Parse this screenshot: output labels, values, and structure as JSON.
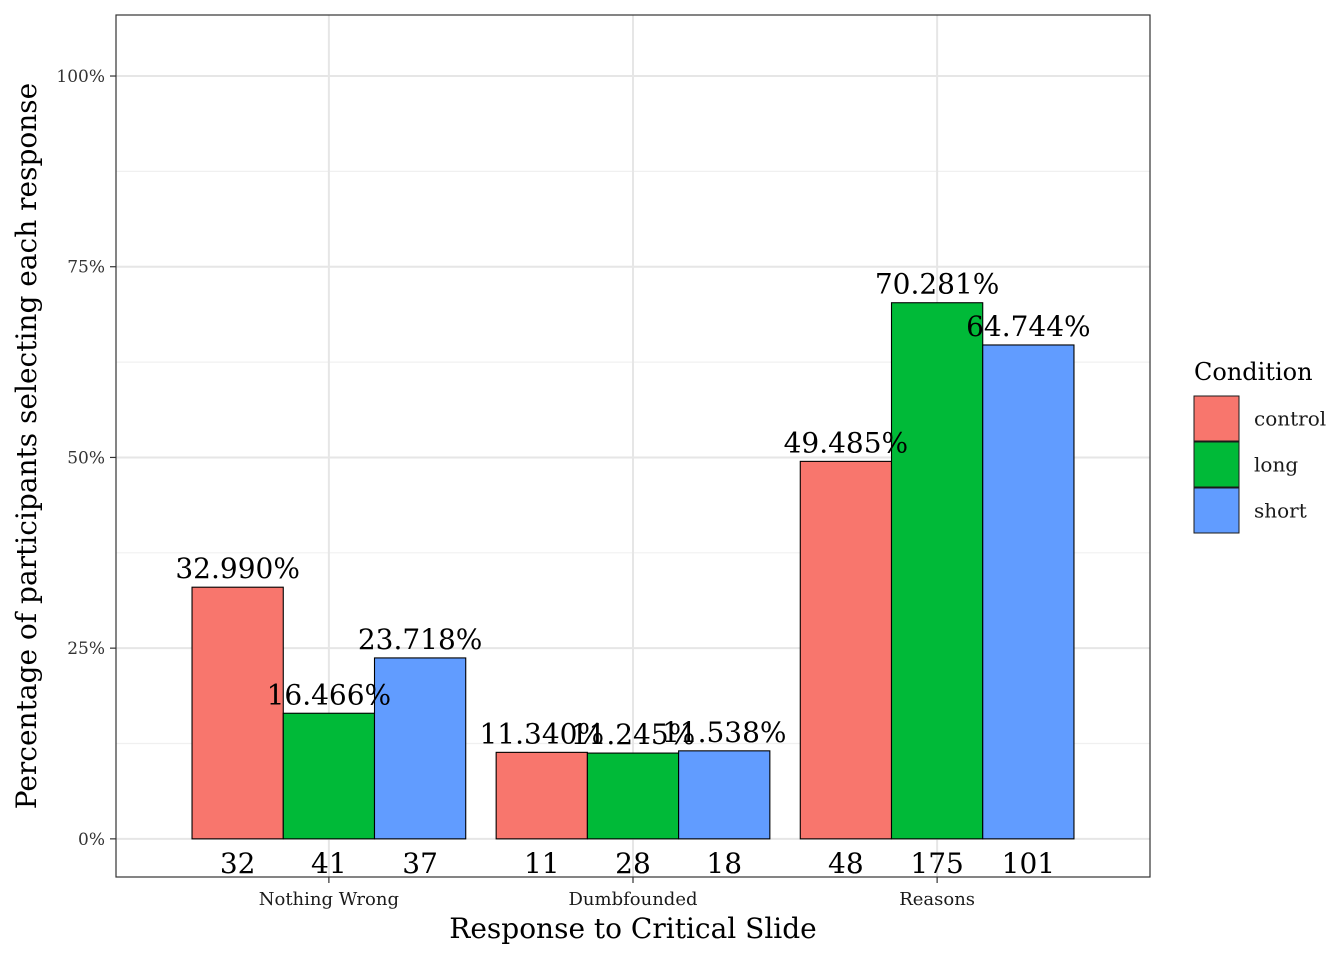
{
  "chart_data": {
    "type": "bar",
    "xlabel": "Response to Critical Slide",
    "ylabel": "Percentage of participants selecting each response",
    "categories": [
      "Nothing Wrong",
      "Dumbfounded",
      "Reasons"
    ],
    "ylim": [
      -0.05,
      1.08
    ],
    "y_ticks": [
      0,
      0.25,
      0.5,
      0.75,
      1.0
    ],
    "y_tick_labels": [
      "0%",
      "25%",
      "50%",
      "75%",
      "100%"
    ],
    "grid": true,
    "legend": {
      "title": "Condition",
      "position": "right"
    },
    "series": [
      {
        "name": "control",
        "color": "#F8766D",
        "values": [
          0.3299,
          0.1134,
          0.49485
        ],
        "value_labels": [
          "32.990%",
          "11.340%",
          "49.485%"
        ],
        "counts": [
          "32",
          "11",
          "48"
        ]
      },
      {
        "name": "long",
        "color": "#00BA38",
        "values": [
          0.16466,
          0.11245,
          0.70281
        ],
        "value_labels": [
          "16.466%",
          "11.245%",
          "70.281%"
        ],
        "counts": [
          "41",
          "28",
          "175"
        ]
      },
      {
        "name": "short",
        "color": "#619CFF",
        "values": [
          0.23718,
          0.11538,
          0.64744
        ],
        "value_labels": [
          "23.718%",
          "11.538%",
          "64.744%"
        ],
        "counts": [
          "37",
          "18",
          "101"
        ]
      }
    ]
  }
}
